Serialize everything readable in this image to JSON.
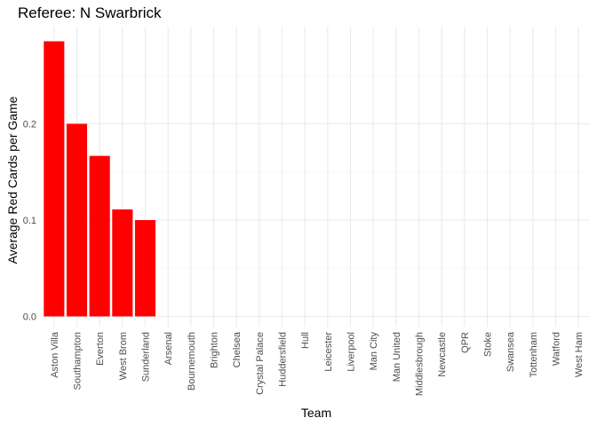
{
  "chart_data": {
    "type": "bar",
    "title": "Referee: N Swarbrick",
    "xlabel": "Team",
    "ylabel": "Average Red Cards per Game",
    "categories": [
      "Aston Villa",
      "Southampton",
      "Everton",
      "West Brom",
      "Sunderland",
      "Arsenal",
      "Bournemouth",
      "Brighton",
      "Chelsea",
      "Crystal Palace",
      "Huddersfield",
      "Hull",
      "Leicester",
      "Liverpool",
      "Man City",
      "Man United",
      "Middlesbrough",
      "Newcastle",
      "QPR",
      "Stoke",
      "Swansea",
      "Tottenham",
      "Watford",
      "West Ham"
    ],
    "values": [
      0.2857,
      0.2,
      0.1667,
      0.1111,
      0.1,
      0,
      0,
      0,
      0,
      0,
      0,
      0,
      0,
      0,
      0,
      0,
      0,
      0,
      0,
      0,
      0,
      0,
      0,
      0
    ],
    "yticks": [
      0.0,
      0.1,
      0.2
    ],
    "ytick_labels": [
      "0.0",
      "0.1",
      "0.2"
    ],
    "ylim": [
      0,
      0.3
    ],
    "bar_color": "#ff0000",
    "grid": true,
    "legend": "none"
  }
}
